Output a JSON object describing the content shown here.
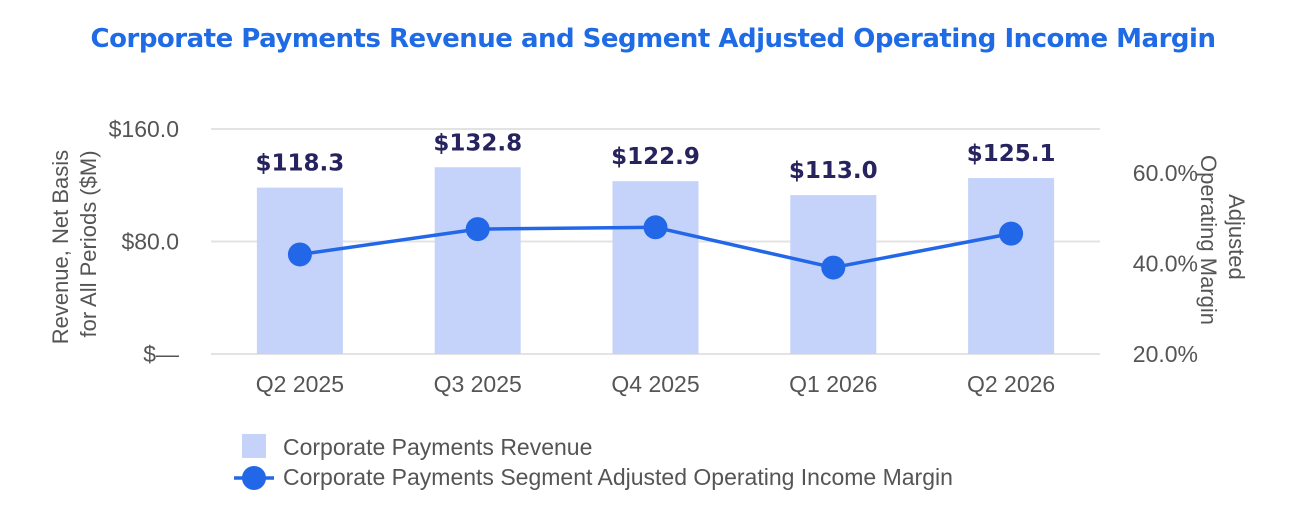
{
  "chart_data": {
    "type": "bar",
    "title": "Corporate Payments Revenue and Segment Adjusted Operating Income Margin",
    "categories": [
      "Q2 2025",
      "Q3 2025",
      "Q4 2025",
      "Q1 2026",
      "Q2 2026"
    ],
    "ylabel": "Revenue, Net Basis for All Periods ($M)",
    "y2label": "Adjusted Operating Margin",
    "ylim": [
      0,
      160
    ],
    "y_ticks": [
      "$—",
      "$80.0",
      "$160.0"
    ],
    "y2lim": [
      20,
      60
    ],
    "y2_ticks": [
      "20.0%",
      "40.0%",
      "60.0%"
    ],
    "grid": true,
    "legend_position": "bottom",
    "series": [
      {
        "name": "Corporate Payments Revenue",
        "type": "bar",
        "axis": "left",
        "values": [
          118.3,
          132.8,
          122.9,
          113.0,
          125.1
        ],
        "data_labels": [
          "$118.3",
          "$132.8",
          "$122.9",
          "$113.0",
          "$125.1"
        ]
      },
      {
        "name": "Corporate Payments Segment Adjusted Operating Income Margin",
        "type": "line",
        "axis": "right",
        "values": [
          42.0,
          47.6,
          48.0,
          39.1,
          46.6
        ]
      }
    ]
  },
  "colors": {
    "title": "#1f6be6",
    "bar": "#c5d3fb",
    "line": "#2267e8",
    "data_label": "#26235e",
    "grid": "#e3e3e3",
    "tick": "#555555"
  }
}
